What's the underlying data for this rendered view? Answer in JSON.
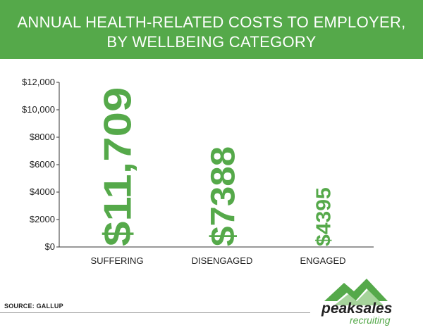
{
  "title": {
    "line1": "ANNUAL HEALTH-RELATED COSTS TO EMPLOYER,",
    "line2": "BY WELLBEING CATEGORY"
  },
  "chart_data": {
    "type": "bar",
    "categories": [
      "SUFFERING",
      "DISENGAGED",
      "ENGAGED"
    ],
    "values": [
      11709,
      7388,
      4395
    ],
    "value_labels": [
      "$11,709",
      "$7388",
      "$4395"
    ],
    "ylim": [
      0,
      12000
    ],
    "y_ticks": [
      0,
      2000,
      4000,
      6000,
      8000,
      10000,
      12000
    ],
    "y_tick_labels": [
      "$0",
      "$2000",
      "$4000",
      "$6000",
      "$8000",
      "$10,000",
      "$12,000"
    ],
    "xlabel": "",
    "ylabel": "",
    "grid": false,
    "bar_color": "#55a94a"
  },
  "source": "SOURCE: GALLUP",
  "logo": {
    "name": "peaksales",
    "sub": "recruiting"
  },
  "colors": {
    "accent": "#55a94a",
    "text": "#222222",
    "axis": "#333333"
  }
}
